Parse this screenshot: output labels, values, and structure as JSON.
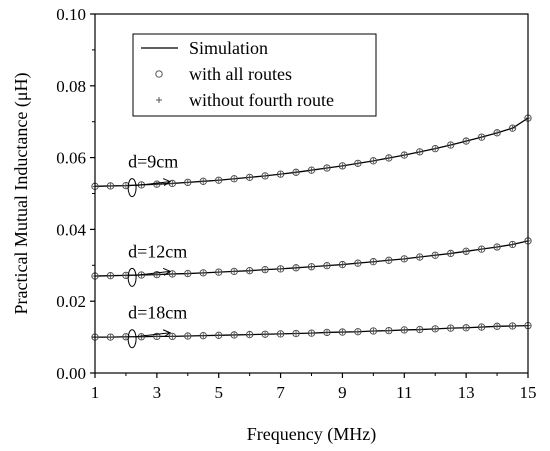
{
  "chart_data": {
    "type": "line",
    "xlabel": "Frequency (MHz)",
    "ylabel": "Practical Mutual Inductance (μH)",
    "xlim": [
      1,
      15
    ],
    "ylim": [
      0,
      0.1
    ],
    "x_ticks": [
      1,
      3,
      5,
      7,
      9,
      11,
      13,
      15
    ],
    "y_ticks": [
      0.0,
      0.02,
      0.04,
      0.06,
      0.08,
      0.1
    ],
    "x_tick_labels": [
      "1",
      "3",
      "5",
      "7",
      "9",
      "11",
      "13",
      "15"
    ],
    "y_tick_labels": [
      "0.00",
      "0.02",
      "0.04",
      "0.06",
      "0.08",
      "0.10"
    ],
    "legend": {
      "placement": "top-center",
      "entries": [
        {
          "label": "Simulation",
          "marker": "line"
        },
        {
          "label": "with all routes",
          "marker": "circle"
        },
        {
          "label": "without fourth route",
          "marker": "plus"
        }
      ]
    },
    "annotations": [
      {
        "text": "d=9cm",
        "series_index": 0
      },
      {
        "text": "d=12cm",
        "series_index": 1
      },
      {
        "text": "d=18cm",
        "series_index": 2
      }
    ],
    "x": [
      1.0,
      1.5,
      2.0,
      2.5,
      3.0,
      3.5,
      4.0,
      4.5,
      5.0,
      5.5,
      6.0,
      6.5,
      7.0,
      7.5,
      8.0,
      8.5,
      9.0,
      9.5,
      10.0,
      10.5,
      11.0,
      11.5,
      12.0,
      12.5,
      13.0,
      13.5,
      14.0,
      14.5,
      15.0
    ],
    "series": [
      {
        "values": [
          0.052,
          0.0521,
          0.0522,
          0.0524,
          0.0526,
          0.0528,
          0.0531,
          0.0534,
          0.0537,
          0.0541,
          0.0545,
          0.0549,
          0.0554,
          0.0559,
          0.0565,
          0.0571,
          0.0577,
          0.0584,
          0.0591,
          0.0599,
          0.0607,
          0.0616,
          0.0625,
          0.0635,
          0.0646,
          0.0657,
          0.0669,
          0.0682,
          0.071
        ]
      },
      {
        "values": [
          0.027,
          0.0271,
          0.0272,
          0.0273,
          0.0274,
          0.0276,
          0.0277,
          0.0279,
          0.0281,
          0.0283,
          0.0285,
          0.0288,
          0.029,
          0.0293,
          0.0296,
          0.0299,
          0.0302,
          0.0306,
          0.031,
          0.0314,
          0.0318,
          0.0323,
          0.0328,
          0.0333,
          0.0339,
          0.0345,
          0.0351,
          0.0358,
          0.0368
        ]
      },
      {
        "values": [
          0.01,
          0.01,
          0.0101,
          0.0101,
          0.0102,
          0.0102,
          0.0103,
          0.0104,
          0.0105,
          0.0106,
          0.0107,
          0.0108,
          0.0109,
          0.011,
          0.0111,
          0.0113,
          0.0114,
          0.0115,
          0.0117,
          0.0118,
          0.012,
          0.0121,
          0.0123,
          0.0125,
          0.0126,
          0.0128,
          0.013,
          0.0131,
          0.0132
        ]
      }
    ]
  }
}
